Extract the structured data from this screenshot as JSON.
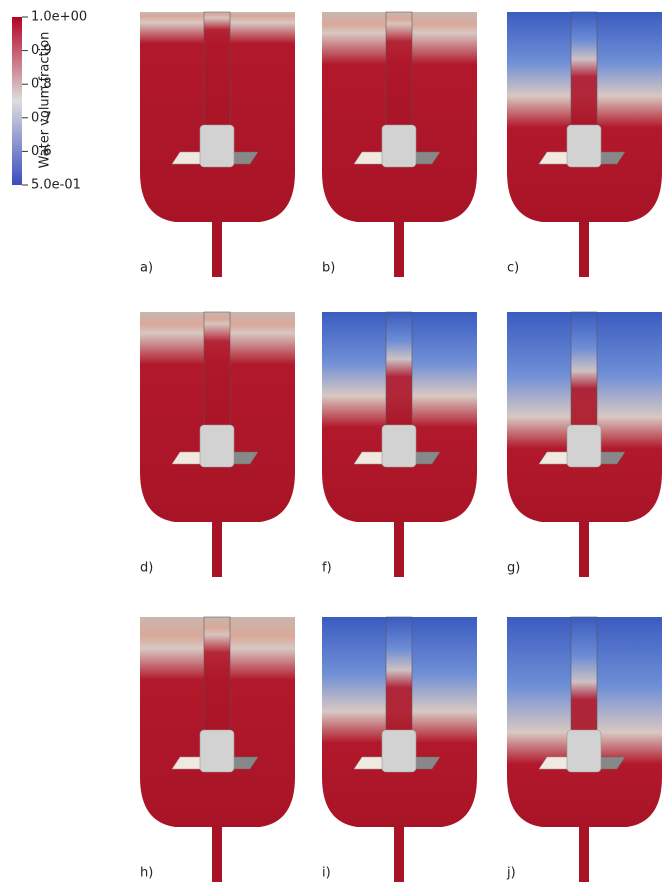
{
  "colorbar": {
    "title": "Water volum fraction",
    "range": [
      0.5,
      1.0
    ],
    "ticks": [
      {
        "value": 1.0,
        "label": "1.0e+00"
      },
      0.9,
      0.8,
      0.7,
      0.6,
      {
        "value": 0.5,
        "label": "5.0e-01"
      }
    ]
  },
  "panels": [
    {
      "label": "a)"
    },
    {
      "label": "b)"
    },
    {
      "label": "c)"
    },
    {
      "label": "d)"
    },
    {
      "label": "f)"
    },
    {
      "label": "g)"
    },
    {
      "label": "h)"
    },
    {
      "label": "i)"
    },
    {
      "label": "j)"
    }
  ]
}
